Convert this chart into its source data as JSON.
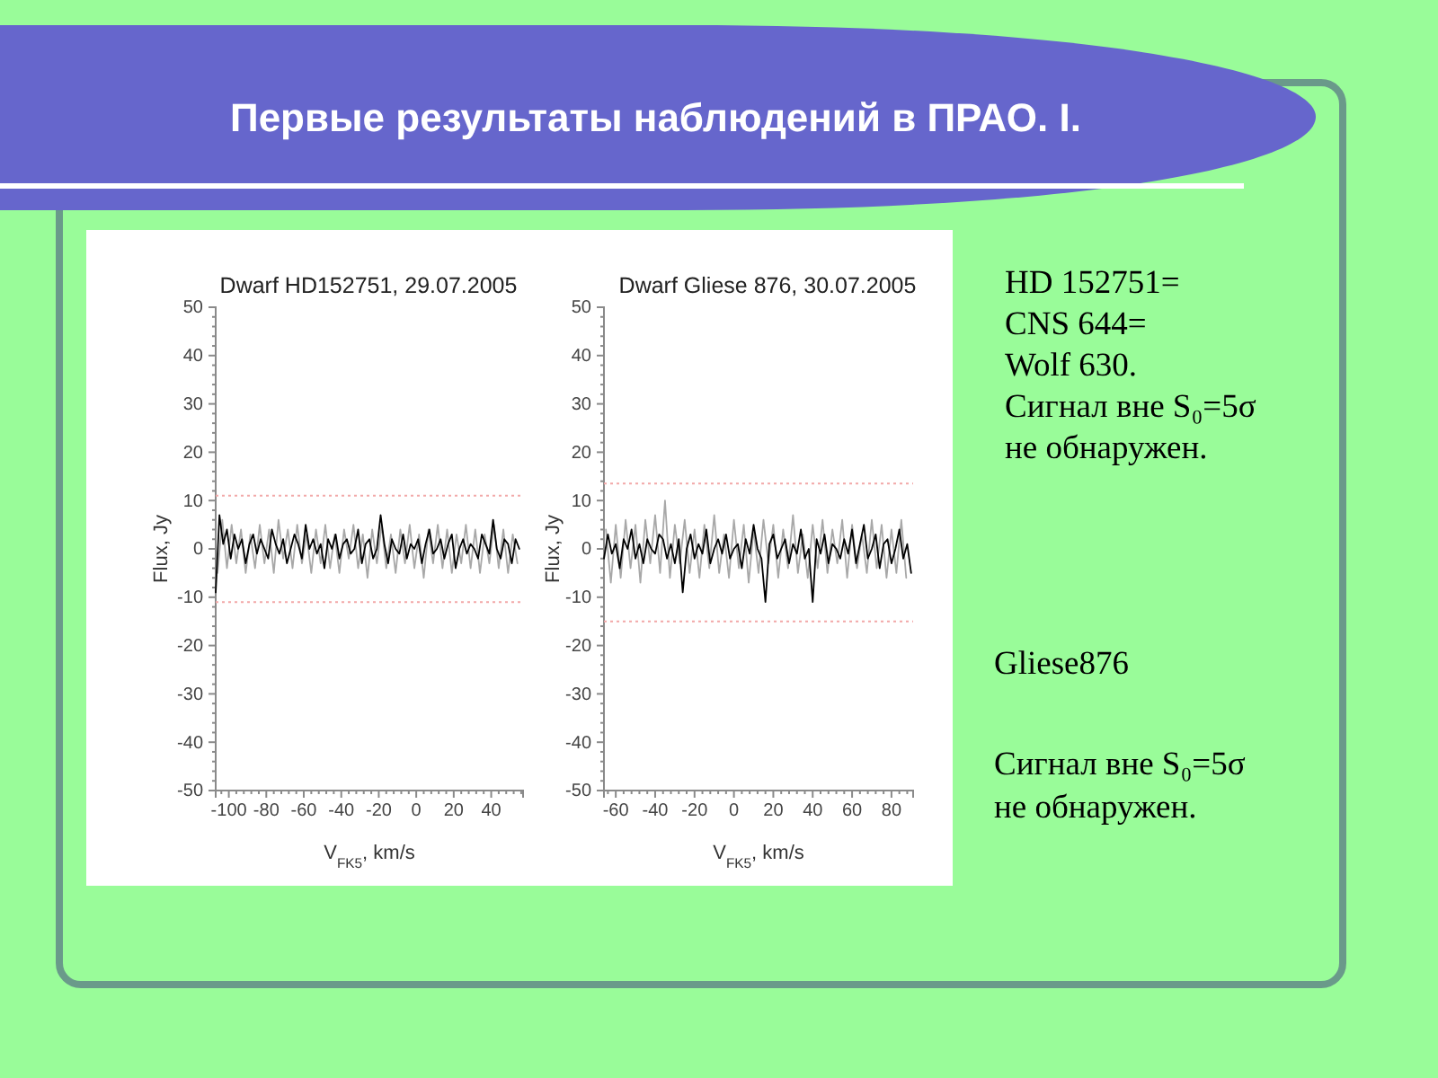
{
  "chart_data": [
    {
      "type": "line",
      "title": "Dwarf HD152751, 29.07.2005",
      "xlabel": "V$_{FK5}$, km/s",
      "ylabel": "Flux, Jy",
      "xlim": [
        -107,
        57
      ],
      "xticks": [
        {
          "value": -104,
          "label": null
        },
        -100,
        {
          "value": -96,
          "label": null
        },
        {
          "value": -92,
          "label": null
        },
        {
          "value": -88,
          "label": null
        },
        {
          "value": -84,
          "label": null
        },
        -80,
        {
          "value": -76,
          "label": null
        },
        {
          "value": -72,
          "label": null
        },
        {
          "value": -68,
          "label": null
        },
        {
          "value": -64,
          "label": null
        },
        -60,
        {
          "value": -56,
          "label": null
        },
        {
          "value": -52,
          "label": null
        },
        {
          "value": -48,
          "label": null
        },
        {
          "value": -44,
          "label": null
        },
        -40,
        {
          "value": -36,
          "label": null
        },
        {
          "value": -32,
          "label": null
        },
        {
          "value": -28,
          "label": null
        },
        {
          "value": -24,
          "label": null
        },
        -20,
        {
          "value": -16,
          "label": null
        },
        {
          "value": -12,
          "label": null
        },
        {
          "value": -8,
          "label": null
        },
        {
          "value": -4,
          "label": null
        },
        0,
        {
          "value": 4,
          "label": null
        },
        {
          "value": 8,
          "label": null
        },
        {
          "value": 12,
          "label": null
        },
        {
          "value": 16,
          "label": null
        },
        20,
        {
          "value": 24,
          "label": null
        },
        {
          "value": 28,
          "label": null
        },
        {
          "value": 32,
          "label": null
        },
        {
          "value": 36,
          "label": null
        },
        40,
        {
          "value": 44,
          "label": null
        },
        {
          "value": 48,
          "label": null
        },
        {
          "value": 52,
          "label": null
        },
        {
          "value": 56,
          "label": null
        }
      ],
      "ylim": [
        -50,
        50
      ],
      "yticks": [
        -50,
        {
          "value": -48,
          "label": null
        },
        {
          "value": -46,
          "label": null
        },
        {
          "value": -44,
          "label": null
        },
        {
          "value": -42,
          "label": null
        },
        -40,
        {
          "value": -38,
          "label": null
        },
        {
          "value": -36,
          "label": null
        },
        {
          "value": -34,
          "label": null
        },
        {
          "value": -32,
          "label": null
        },
        -30,
        {
          "value": -28,
          "label": null
        },
        {
          "value": -26,
          "label": null
        },
        {
          "value": -24,
          "label": null
        },
        {
          "value": -22,
          "label": null
        },
        -20,
        {
          "value": -18,
          "label": null
        },
        {
          "value": -16,
          "label": null
        },
        {
          "value": -14,
          "label": null
        },
        {
          "value": -12,
          "label": null
        },
        -10,
        {
          "value": -8,
          "label": null
        },
        {
          "value": -6,
          "label": null
        },
        {
          "value": -4,
          "label": null
        },
        {
          "value": -2,
          "label": null
        },
        0,
        {
          "value": 2,
          "label": null
        },
        {
          "value": 4,
          "label": null
        },
        {
          "value": 6,
          "label": null
        },
        {
          "value": 8,
          "label": null
        },
        10,
        {
          "value": 12,
          "label": null
        },
        {
          "value": 14,
          "label": null
        },
        {
          "value": 16,
          "label": null
        },
        {
          "value": 18,
          "label": null
        },
        20,
        {
          "value": 22,
          "label": null
        },
        {
          "value": 24,
          "label": null
        },
        {
          "value": 26,
          "label": null
        },
        {
          "value": 28,
          "label": null
        },
        30,
        {
          "value": 32,
          "label": null
        },
        {
          "value": 34,
          "label": null
        },
        {
          "value": 36,
          "label": null
        },
        {
          "value": 38,
          "label": null
        },
        40,
        {
          "value": 42,
          "label": null
        },
        {
          "value": 44,
          "label": null
        },
        {
          "value": 46,
          "label": null
        },
        {
          "value": 48,
          "label": null
        },
        50
      ],
      "ref_lines": [
        {
          "axis": "y",
          "value": 11,
          "color": "#f2a8a8",
          "line_style": "dotted"
        },
        {
          "axis": "y",
          "value": -11,
          "color": "#f2a8a8",
          "line_style": "dotted"
        }
      ],
      "series": [
        {
          "color": "#a8a8a8",
          "x": [
            -106,
            -103.5,
            -101,
            -98.5,
            -96,
            -93.5,
            -91,
            -88.5,
            -86,
            -83.5,
            -81,
            -78.5,
            -76,
            -73.5,
            -71,
            -68.5,
            -66,
            -63.5,
            -61,
            -58.5,
            -56,
            -53.5,
            -51,
            -48.5,
            -46,
            -43.5,
            -41,
            -38.5,
            -36,
            -33.5,
            -31,
            -28.5,
            -26,
            -23.5,
            -21,
            -18.5,
            -16,
            -13.5,
            -11,
            -8.5,
            -6,
            -3.5,
            -1,
            1.5,
            4,
            6.5,
            9,
            11.5,
            14,
            16.5,
            19,
            21.5,
            24,
            26.5,
            29,
            31.5,
            34,
            36.5,
            39,
            41.5,
            44,
            46.5,
            49,
            51.5,
            54
          ],
          "values": [
            -5,
            6,
            -4,
            5,
            -3,
            4,
            -5,
            3,
            -4,
            5,
            -3,
            4,
            -5,
            6,
            -2,
            4,
            -4,
            5,
            -3,
            3,
            -5,
            4,
            -3,
            5,
            -4,
            3,
            -5,
            4,
            -2,
            5,
            -4,
            3,
            -6,
            4,
            -3,
            5,
            -4,
            3,
            -5,
            4,
            -3,
            5,
            -4,
            3,
            -6,
            4,
            -3,
            5,
            -4,
            4,
            -5,
            3,
            -3,
            5,
            -4,
            4,
            -5,
            3,
            -3,
            5,
            -4,
            4,
            -5,
            3,
            -3
          ]
        },
        {
          "color": "#000000",
          "x": [
            -107,
            -105,
            -103,
            -101,
            -99,
            -97,
            -95,
            -93,
            -91,
            -89,
            -87,
            -85,
            -83,
            -81,
            -79,
            -77,
            -75,
            -73,
            -71,
            -69,
            -67,
            -65,
            -63,
            -61,
            -59,
            -57,
            -55,
            -53,
            -51,
            -49,
            -47,
            -45,
            -43,
            -41,
            -39,
            -37,
            -35,
            -33,
            -31,
            -29,
            -27,
            -25,
            -23,
            -21,
            -19,
            -17,
            -15,
            -13,
            -11,
            -9,
            -7,
            -5,
            -3,
            -1,
            1,
            3,
            5,
            7,
            9,
            11,
            13,
            15,
            17,
            19,
            21,
            23,
            25,
            27,
            29,
            31,
            33,
            35,
            37,
            39,
            41,
            43,
            45,
            47,
            49,
            51,
            53,
            55
          ],
          "values": [
            -9,
            7,
            1,
            4,
            -2,
            3,
            0,
            2,
            -3,
            1,
            3,
            -1,
            2,
            0,
            -2,
            4,
            1,
            -1,
            2,
            -3,
            0,
            3,
            1,
            -2,
            5,
            0,
            2,
            -1,
            1,
            -4,
            2,
            0,
            3,
            -2,
            1,
            2,
            -1,
            0,
            4,
            -3,
            1,
            2,
            -2,
            0,
            7,
            1,
            -3,
            2,
            0,
            -1,
            3,
            -2,
            1,
            0,
            2,
            -3,
            1,
            4,
            -1,
            0,
            2,
            -2,
            1,
            3,
            -4,
            0,
            2,
            -1,
            1,
            0,
            -2,
            3,
            1,
            -1,
            6,
            0,
            -2,
            2,
            1,
            -3,
            2,
            0
          ]
        }
      ]
    },
    {
      "type": "line",
      "title": "Dwarf Gliese 876, 30.07.2005",
      "xlabel": "V$_{FK5}$, km/s",
      "ylabel": "Flux, Jy",
      "xlim": [
        -66,
        91
      ],
      "xticks": [
        {
          "value": -64,
          "label": null
        },
        -60,
        {
          "value": -56,
          "label": null
        },
        {
          "value": -52,
          "label": null
        },
        {
          "value": -48,
          "label": null
        },
        {
          "value": -44,
          "label": null
        },
        -40,
        {
          "value": -36,
          "label": null
        },
        {
          "value": -32,
          "label": null
        },
        {
          "value": -28,
          "label": null
        },
        {
          "value": -24,
          "label": null
        },
        -20,
        {
          "value": -16,
          "label": null
        },
        {
          "value": -12,
          "label": null
        },
        {
          "value": -8,
          "label": null
        },
        {
          "value": -4,
          "label": null
        },
        0,
        {
          "value": 4,
          "label": null
        },
        {
          "value": 8,
          "label": null
        },
        {
          "value": 12,
          "label": null
        },
        {
          "value": 16,
          "label": null
        },
        20,
        {
          "value": 24,
          "label": null
        },
        {
          "value": 28,
          "label": null
        },
        {
          "value": 32,
          "label": null
        },
        {
          "value": 36,
          "label": null
        },
        40,
        {
          "value": 44,
          "label": null
        },
        {
          "value": 48,
          "label": null
        },
        {
          "value": 52,
          "label": null
        },
        {
          "value": 56,
          "label": null
        },
        60,
        {
          "value": 64,
          "label": null
        },
        {
          "value": 68,
          "label": null
        },
        {
          "value": 72,
          "label": null
        },
        {
          "value": 76,
          "label": null
        },
        80,
        {
          "value": 84,
          "label": null
        },
        {
          "value": 88,
          "label": null
        }
      ],
      "ylim": [
        -50,
        50
      ],
      "yticks": [
        -50,
        {
          "value": -48,
          "label": null
        },
        {
          "value": -46,
          "label": null
        },
        {
          "value": -44,
          "label": null
        },
        {
          "value": -42,
          "label": null
        },
        -40,
        {
          "value": -38,
          "label": null
        },
        {
          "value": -36,
          "label": null
        },
        {
          "value": -34,
          "label": null
        },
        {
          "value": -32,
          "label": null
        },
        -30,
        {
          "value": -28,
          "label": null
        },
        {
          "value": -26,
          "label": null
        },
        {
          "value": -24,
          "label": null
        },
        {
          "value": -22,
          "label": null
        },
        -20,
        {
          "value": -18,
          "label": null
        },
        {
          "value": -16,
          "label": null
        },
        {
          "value": -14,
          "label": null
        },
        {
          "value": -12,
          "label": null
        },
        -10,
        {
          "value": -8,
          "label": null
        },
        {
          "value": -6,
          "label": null
        },
        {
          "value": -4,
          "label": null
        },
        {
          "value": -2,
          "label": null
        },
        0,
        {
          "value": 2,
          "label": null
        },
        {
          "value": 4,
          "label": null
        },
        {
          "value": 6,
          "label": null
        },
        {
          "value": 8,
          "label": null
        },
        10,
        {
          "value": 12,
          "label": null
        },
        {
          "value": 14,
          "label": null
        },
        {
          "value": 16,
          "label": null
        },
        {
          "value": 18,
          "label": null
        },
        20,
        {
          "value": 22,
          "label": null
        },
        {
          "value": 24,
          "label": null
        },
        {
          "value": 26,
          "label": null
        },
        {
          "value": 28,
          "label": null
        },
        30,
        {
          "value": 32,
          "label": null
        },
        {
          "value": 34,
          "label": null
        },
        {
          "value": 36,
          "label": null
        },
        {
          "value": 38,
          "label": null
        },
        40,
        {
          "value": 42,
          "label": null
        },
        {
          "value": 44,
          "label": null
        },
        {
          "value": 46,
          "label": null
        },
        {
          "value": 48,
          "label": null
        },
        50
      ],
      "ref_lines": [
        {
          "axis": "y",
          "value": 13.5,
          "color": "#f2a8a8",
          "line_style": "dotted"
        },
        {
          "axis": "y",
          "value": -15,
          "color": "#f2a8a8",
          "line_style": "dotted"
        }
      ],
      "series": [
        {
          "color": "#a8a8a8",
          "x": [
            -65,
            -62.5,
            -60,
            -57.5,
            -55,
            -52.5,
            -50,
            -47.5,
            -45,
            -42.5,
            -40,
            -37.5,
            -35,
            -32.5,
            -30,
            -27.5,
            -25,
            -22.5,
            -20,
            -17.5,
            -15,
            -12.5,
            -10,
            -7.5,
            -5,
            -2.5,
            0,
            2.5,
            5,
            7.5,
            10,
            12.5,
            15,
            17.5,
            20,
            22.5,
            25,
            27.5,
            30,
            32.5,
            35,
            37.5,
            40,
            42.5,
            45,
            47.5,
            50,
            52.5,
            55,
            57.5,
            60,
            62.5,
            65,
            67.5,
            70,
            72.5,
            75,
            77.5,
            80,
            82.5,
            85,
            87.5
          ],
          "values": [
            4,
            -7,
            5,
            -6,
            6,
            -4,
            5,
            -7,
            6,
            -3,
            7,
            -5,
            10,
            -6,
            5,
            -3,
            6,
            -5,
            4,
            -6,
            5,
            -4,
            7,
            -5,
            3,
            -6,
            6,
            -4,
            5,
            -7,
            4,
            -5,
            6,
            -3,
            5,
            -6,
            4,
            -4,
            7,
            -5,
            3,
            -6,
            5,
            -4,
            6,
            -5,
            4,
            -3,
            6,
            -6,
            5,
            -4,
            3,
            -5,
            6,
            -4,
            5,
            -6,
            4,
            -5,
            6,
            -6
          ]
        },
        {
          "color": "#000000",
          "x": [
            -66,
            -64,
            -62,
            -60,
            -58,
            -56,
            -54,
            -52,
            -50,
            -48,
            -46,
            -44,
            -42,
            -40,
            -38,
            -36,
            -34,
            -32,
            -30,
            -28,
            -26,
            -24,
            -22,
            -20,
            -18,
            -16,
            -14,
            -12,
            -10,
            -8,
            -6,
            -4,
            -2,
            0,
            2,
            4,
            6,
            8,
            10,
            12,
            14,
            16,
            18,
            20,
            22,
            24,
            26,
            28,
            30,
            32,
            34,
            36,
            38,
            40,
            42,
            44,
            46,
            48,
            50,
            52,
            54,
            56,
            58,
            60,
            62,
            64,
            66,
            68,
            70,
            72,
            74,
            76,
            78,
            80,
            82,
            84,
            86,
            88,
            90
          ],
          "values": [
            -2,
            3,
            -1,
            1,
            -4,
            2,
            0,
            4,
            -2,
            1,
            -3,
            2,
            0,
            -1,
            3,
            2,
            -2,
            1,
            -3,
            2,
            -9,
            0,
            3,
            -2,
            1,
            -1,
            4,
            -3,
            0,
            2,
            -1,
            3,
            -2,
            0,
            1,
            -4,
            2,
            -1,
            5,
            0,
            -2,
            -11,
            1,
            3,
            -2,
            0,
            2,
            -3,
            1,
            -1,
            4,
            -2,
            0,
            -11,
            2,
            -1,
            3,
            -3,
            1,
            0,
            -2,
            2,
            -1,
            4,
            -3,
            1,
            5,
            -2,
            0,
            3,
            -4,
            1,
            2,
            -3,
            0,
            4,
            -2,
            1,
            -5
          ]
        }
      ]
    },
    {
      "type": "other",
      "title": "Первые результаты наблюдений в ПРАО. I.",
      "annotations": [
        "HD 152751=",
        "CNS 644=",
        "Wolf 630.",
        "Сигнал вне S₀=5σ",
        "не обнаружен.",
        "Gliese876",
        "Сигнал вне S₀=5σ",
        "не обнаружен."
      ]
    }
  ]
}
